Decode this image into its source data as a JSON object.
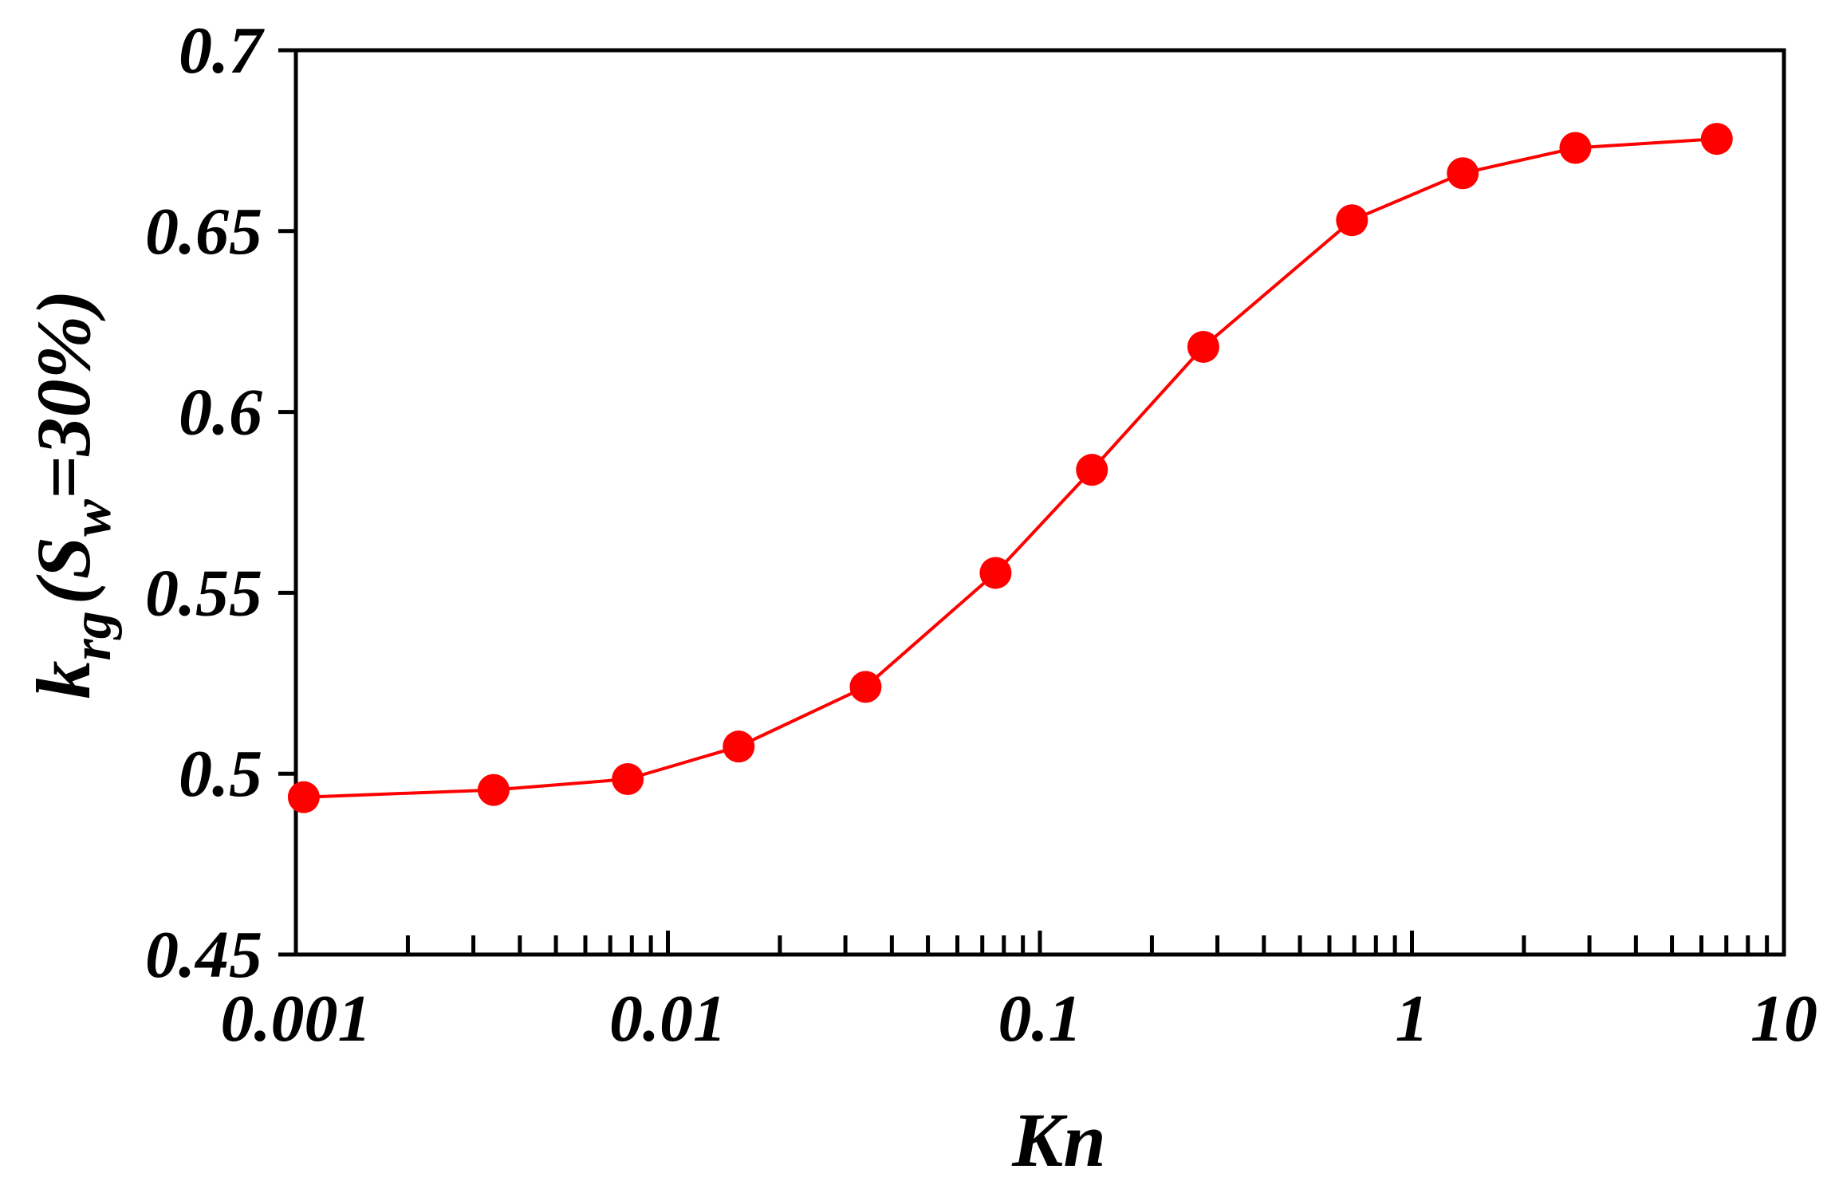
{
  "chart_data": {
    "type": "line",
    "xscale": "log",
    "xlim": [
      0.001,
      10
    ],
    "ylim": [
      0.45,
      0.7
    ],
    "xticks": [
      0.001,
      0.01,
      0.1,
      1,
      10
    ],
    "xtick_labels": [
      "0.001",
      "0.01",
      "0.1",
      "1",
      "10"
    ],
    "yticks": [
      0.45,
      0.5,
      0.55,
      0.6,
      0.65,
      0.7
    ],
    "ytick_labels": [
      "0.45",
      "0.5",
      "0.55",
      "0.6",
      "0.65",
      "0.7"
    ],
    "xlabel": "Kn",
    "ylabel": {
      "k": "k",
      "k_sub": "rg",
      "open": "(S",
      "s_sub": "w",
      "rest": "=30%)"
    },
    "grid": false,
    "legend": false,
    "series": [
      {
        "color": "#ff0000",
        "marker": "circle",
        "x": [
          0.00105,
          0.0034,
          0.0078,
          0.0155,
          0.034,
          0.076,
          0.138,
          0.275,
          0.69,
          1.37,
          2.75,
          6.6
        ],
        "y": [
          0.4935,
          0.4955,
          0.4985,
          0.5075,
          0.524,
          0.5555,
          0.584,
          0.618,
          0.653,
          0.666,
          0.673,
          0.6755
        ]
      }
    ]
  }
}
